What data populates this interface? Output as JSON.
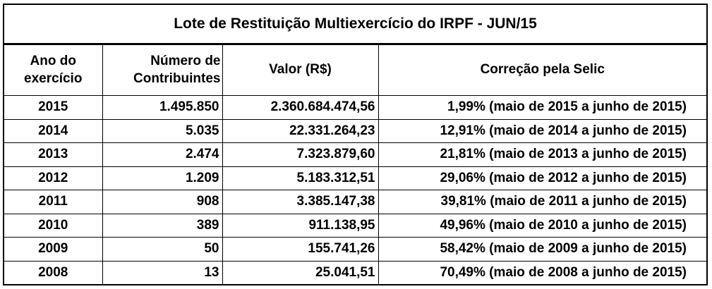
{
  "title": "Lote de Restituição Multiexercício do IRPF - JUN/15",
  "columns": {
    "year": "Ano do exercício",
    "contributors": "Número de Contribuintes",
    "value": "Valor (R$)",
    "correction": "Correção pela Selic"
  },
  "rows": [
    {
      "year": "2015",
      "contributors": "1.495.850",
      "value": "2.360.684.474,56",
      "correction": "1,99% (maio de 2015 a junho de 2015)"
    },
    {
      "year": "2014",
      "contributors": "5.035",
      "value": "22.331.264,23",
      "correction": "12,91% (maio de 2014 a junho de 2015)"
    },
    {
      "year": "2013",
      "contributors": "2.474",
      "value": "7.323.879,60",
      "correction": "21,81% (maio de 2013 a junho de 2015)"
    },
    {
      "year": "2012",
      "contributors": "1.209",
      "value": "5.183.312,51",
      "correction": "29,06% (maio de 2012 a junho de 2015)"
    },
    {
      "year": "2011",
      "contributors": "908",
      "value": "3.385.147,38",
      "correction": "39,81% (maio de 2011 a junho de 2015)"
    },
    {
      "year": "2010",
      "contributors": "389",
      "value": "911.138,95",
      "correction": "49,96% (maio de 2010 a junho de 2015)"
    },
    {
      "year": "2009",
      "contributors": "50",
      "value": "155.741,26",
      "correction": "58,42% (maio de 2009 a junho de 2015)"
    },
    {
      "year": "2008",
      "contributors": "13",
      "value": "25.041,51",
      "correction": "70,49% (maio de 2008 a junho de 2015)"
    }
  ]
}
